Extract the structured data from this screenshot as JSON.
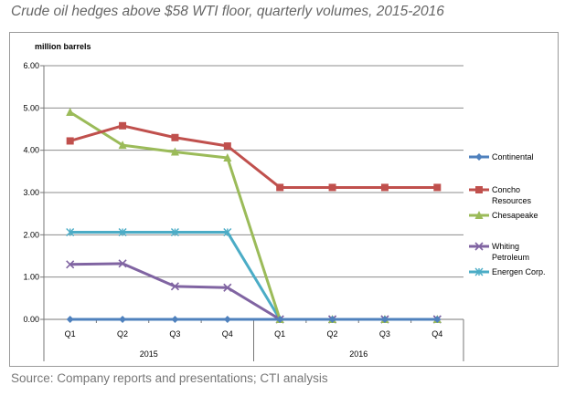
{
  "title": "Crude oil hedges above $58 WTI floor, quarterly volumes, 2015-2016",
  "source": "Source: Company reports and presentations; CTI analysis",
  "chart_data": {
    "type": "line",
    "ylabel": "million barrels",
    "ylim": [
      0,
      6
    ],
    "yticks": [
      "0.00",
      "1.00",
      "2.00",
      "3.00",
      "4.00",
      "5.00",
      "6.00"
    ],
    "categories": [
      "Q1",
      "Q2",
      "Q3",
      "Q4",
      "Q1",
      "Q2",
      "Q3",
      "Q4"
    ],
    "groups": [
      "2015",
      "2016"
    ],
    "grid": true,
    "legend_position": "right",
    "series": [
      {
        "name": "Continental",
        "color": "#4f81bd",
        "marker": "diamond",
        "values": [
          0,
          0,
          0,
          0,
          0,
          0,
          0,
          0
        ]
      },
      {
        "name": "Concho Resources",
        "color": "#c0504d",
        "marker": "square",
        "values": [
          4.22,
          4.58,
          4.3,
          4.1,
          3.12,
          3.12,
          3.12,
          3.12
        ]
      },
      {
        "name": "Chesapeake",
        "color": "#9bbb59",
        "marker": "triangle",
        "values": [
          4.9,
          4.12,
          3.96,
          3.82,
          0,
          0,
          0,
          0
        ]
      },
      {
        "name": "Whiting Petroleum",
        "color": "#8064a2",
        "marker": "x",
        "values": [
          1.3,
          1.32,
          0.78,
          0.75,
          0,
          0,
          0,
          0
        ]
      },
      {
        "name": "Energen Corp.",
        "color": "#4bacc6",
        "marker": "asterisk",
        "values": [
          2.06,
          2.06,
          2.06,
          2.06,
          0,
          0,
          0,
          0
        ]
      }
    ]
  }
}
